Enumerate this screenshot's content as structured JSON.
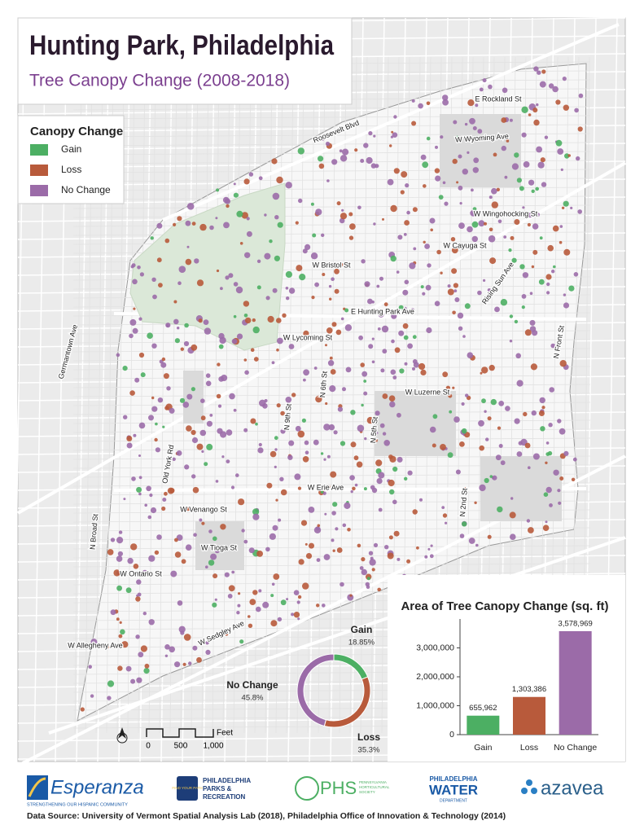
{
  "header": {
    "title": "Hunting Park, Philadelphia",
    "subtitle": "Tree Canopy Change (2008-2018)"
  },
  "legend": {
    "title": "Canopy Change",
    "items": [
      {
        "label": "Gain",
        "color": "#4caf63"
      },
      {
        "label": "Loss",
        "color": "#b85a3b"
      },
      {
        "label": "No Change",
        "color": "#9b6ba8"
      }
    ]
  },
  "streets": [
    "E Rockland St",
    "W Wyoming Ave",
    "Roosevelt Blvd",
    "W Wingohocking St",
    "W Cayuga St",
    "W Bristol St",
    "Rising Sun Ave",
    "E Hunting Park Ave",
    "W Lycoming St",
    "N Front St",
    "W Luzerne St",
    "N 9th St",
    "N 6th St",
    "N 5th St",
    "Germantown Ave",
    "Old York Rd",
    "W Erie Ave",
    "N 2nd St",
    "N Broad St",
    "W Venango St",
    "W Tioga St",
    "W Ontario St",
    "W Sedgley Ave",
    "W Allegheny Ave"
  ],
  "scale_bar": {
    "unit": "Feet",
    "labels": [
      "0",
      "500",
      "1,000"
    ]
  },
  "chart_data": [
    {
      "type": "donut",
      "categories": [
        "Gain",
        "Loss",
        "No Change"
      ],
      "values": [
        18.85,
        35.3,
        45.8
      ],
      "value_labels": [
        "18.85%",
        "35.3%",
        "45.8%"
      ],
      "colors": [
        "#4caf63",
        "#b85a3b",
        "#9b6ba8"
      ]
    },
    {
      "type": "bar",
      "title": "Area of Tree Canopy Change (sq. ft)",
      "categories": [
        "Gain",
        "Loss",
        "No Change"
      ],
      "values": [
        655962,
        1303386,
        3578969
      ],
      "value_labels": [
        "655,962",
        "1,303,386",
        "3,578,969"
      ],
      "colors": [
        "#4caf63",
        "#b85a3b",
        "#9b6ba8"
      ],
      "ylim": [
        0,
        4000000
      ],
      "yticks": [
        0,
        {
          "value": 1000000,
          "label": "1,000,000"
        },
        {
          "value": 2000000,
          "label": "2,000,000"
        },
        {
          "value": 3000000,
          "label": "3,000,000"
        }
      ]
    }
  ],
  "logos": {
    "esperanza": {
      "name": "Esperanza",
      "tagline": "STRENGTHENING OUR HISPANIC COMMUNITY"
    },
    "parks": {
      "badge": "FIND YOUR PATH",
      "lines": [
        "PHILADELPHIA",
        "PARKS &",
        "RECREATION"
      ]
    },
    "phs": {
      "name": "PHS",
      "lines": [
        "PENNSYLVANIA",
        "HORTICULTURAL",
        "SOCIETY"
      ]
    },
    "water": {
      "lines": [
        "PHILADELPHIA",
        "WATER",
        "DEPARTMENT"
      ]
    },
    "azavea": {
      "name": "azavea"
    }
  },
  "source": "Data Source: University of Vermont Spatial Analysis Lab (2018), Philadelphia Office of Innovation & Technology (2014)"
}
